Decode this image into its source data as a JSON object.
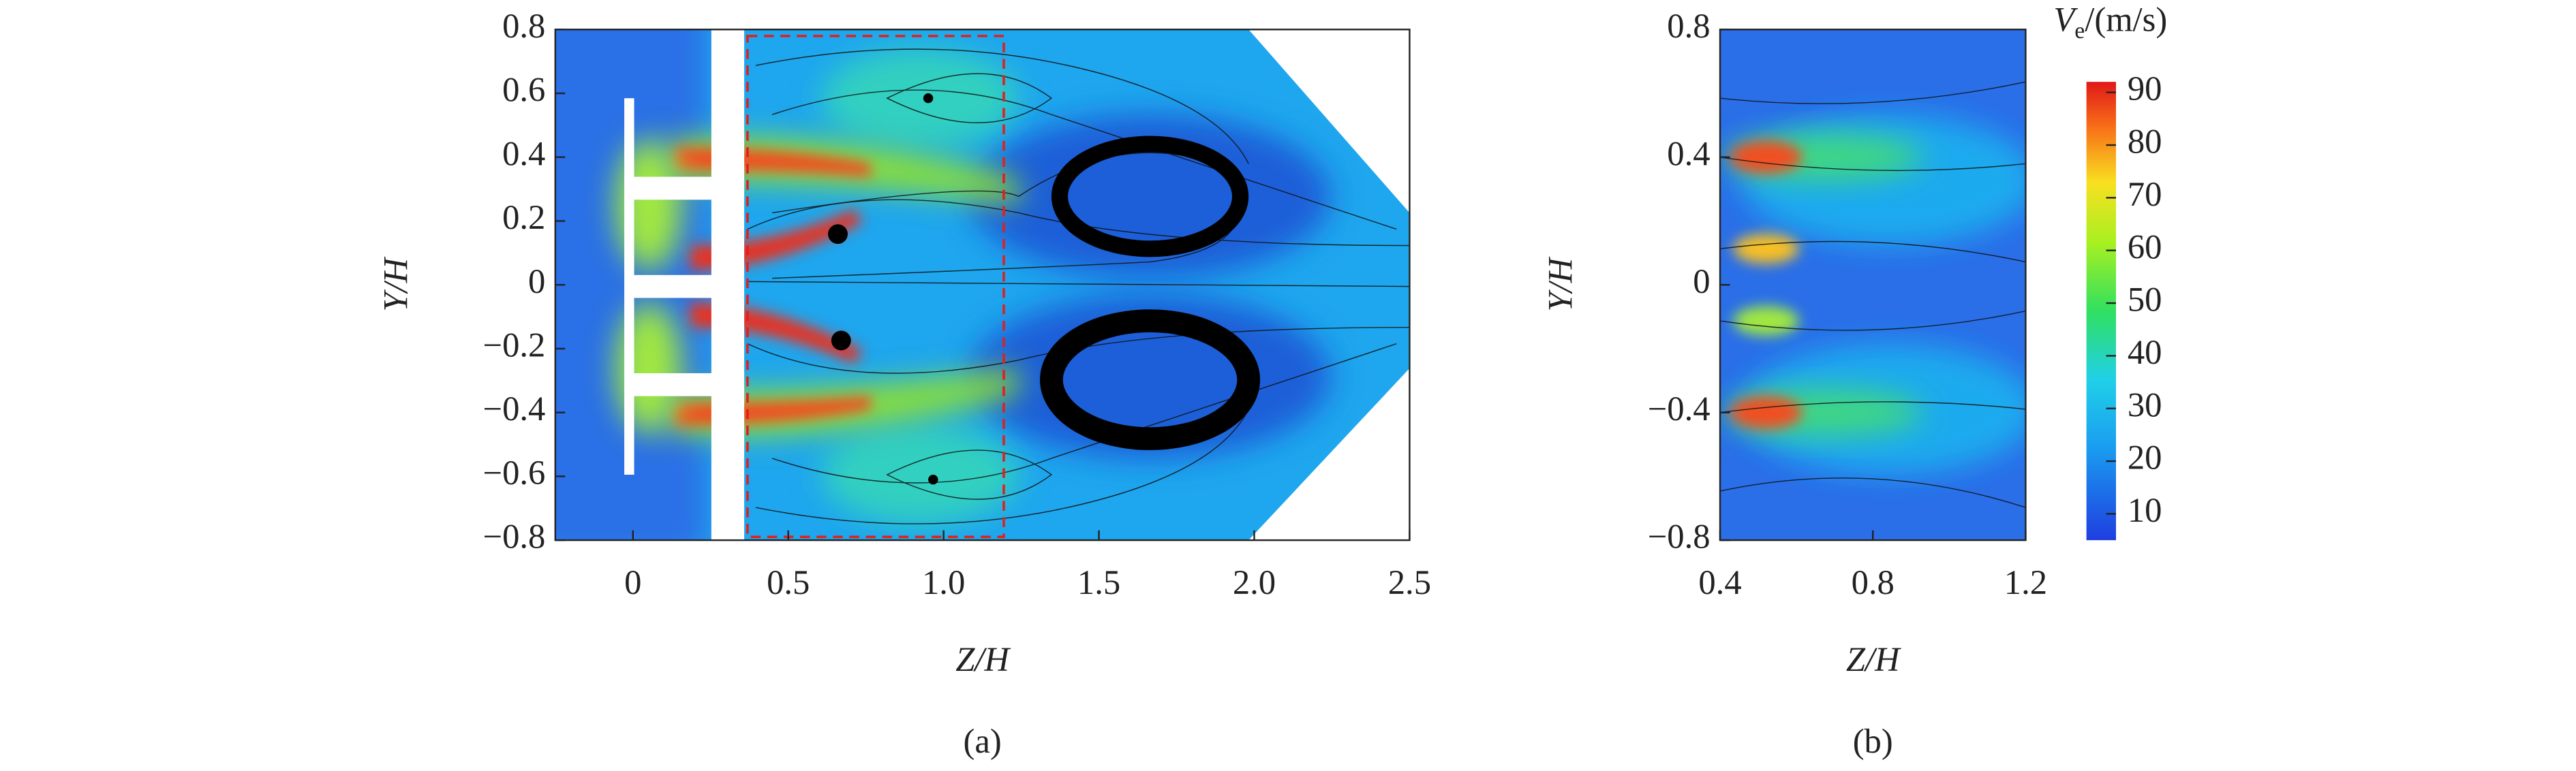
{
  "chart_data": [
    {
      "type": "contour",
      "xlabel": "Z/H",
      "ylabel": "Y/H",
      "caption": "(a)",
      "xlim": [
        -0.25,
        2.5
      ],
      "xticks": [
        0,
        0.5,
        {
          "value": 1,
          "label": "1.0"
        },
        1.5,
        {
          "value": 2,
          "label": "2.0"
        },
        2.5
      ],
      "ylim": [
        -0.8,
        0.8
      ],
      "yticks": [
        {
          "value": -0.8,
          "label": "−0.8"
        },
        {
          "value": -0.6,
          "label": "−0.6"
        },
        {
          "value": -0.4,
          "label": "−0.4"
        },
        {
          "value": -0.2,
          "label": "−0.2"
        },
        0,
        0.2,
        0.4,
        0.6,
        0.8
      ]
    },
    {
      "type": "contour",
      "xlabel": "Z/H",
      "ylabel": "Y/H",
      "caption": "(b)",
      "xlim": [
        0.4,
        1.2
      ],
      "xticks": [
        0.4,
        0.8,
        1.2
      ],
      "ylim": [
        -0.8,
        0.8
      ],
      "yticks": [
        {
          "value": -0.8,
          "label": "−0.8"
        },
        {
          "value": -0.4,
          "label": "−0.4"
        },
        0,
        0.4,
        0.8
      ],
      "colorbar": {
        "symbol": "V",
        "subscript": "e",
        "unit": "/(m/s)",
        "lim": [
          5,
          92
        ],
        "ticks": [
          10,
          20,
          30,
          40,
          50,
          60,
          70,
          80,
          90
        ]
      }
    }
  ]
}
